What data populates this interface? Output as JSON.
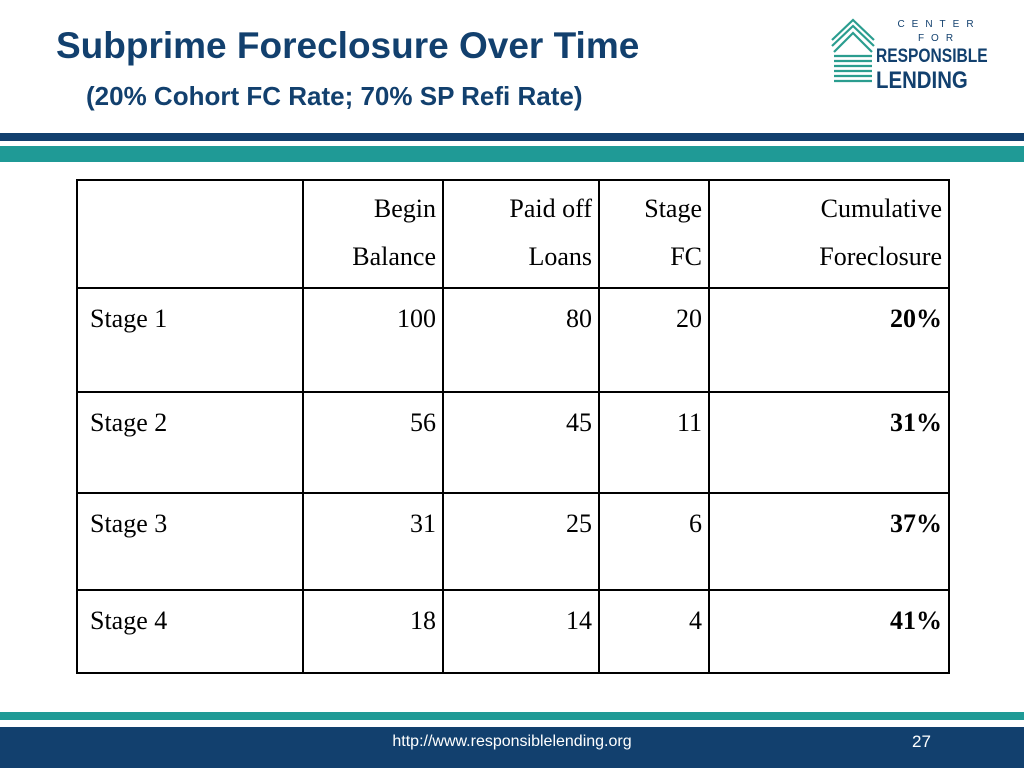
{
  "slide": {
    "title": "Subprime Foreclosure Over Time",
    "subtitle": "(20% Cohort FC Rate; 70% SP Refi Rate)",
    "page_number": "27"
  },
  "logo": {
    "line1": "CENTER FOR",
    "line2": "RESPONSIBLE",
    "line3": "LENDING"
  },
  "footer": {
    "url": "http://www.responsiblelending.org"
  },
  "colors": {
    "navy": "#12406e",
    "teal": "#1f9a96"
  },
  "table": {
    "headers": [
      {
        "line1": "",
        "line2": ""
      },
      {
        "line1": "Begin",
        "line2": "Balance"
      },
      {
        "line1": "Paid off",
        "line2": "Loans"
      },
      {
        "line1": "Stage",
        "line2": "FC"
      },
      {
        "line1": "Cumulative",
        "line2": "Foreclosure"
      }
    ],
    "rows": [
      {
        "stage": "Stage 1",
        "begin": "100",
        "paid": "80",
        "fc": "20",
        "cum": "20%"
      },
      {
        "stage": "Stage 2",
        "begin": "56",
        "paid": "45",
        "fc": "11",
        "cum": "31%"
      },
      {
        "stage": "Stage 3",
        "begin": "31",
        "paid": "25",
        "fc": "6",
        "cum": "37%"
      },
      {
        "stage": "Stage 4",
        "begin": "18",
        "paid": "14",
        "fc": "4",
        "cum": "41%"
      }
    ]
  }
}
